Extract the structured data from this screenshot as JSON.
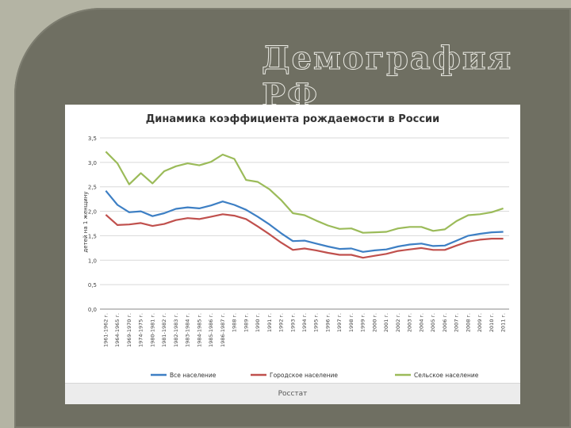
{
  "slide": {
    "title": "Демография РФ",
    "footer_source": "Росстат"
  },
  "colors": {
    "background": "#b4b4a4",
    "panel": "#6f6f62",
    "all_population": "#3d7fc4",
    "urban_population": "#c0504d",
    "rural_population": "#9bbb59"
  },
  "chart_data": {
    "type": "line",
    "title": "Динамика коэффициента рождаемости в России",
    "xlabel": "",
    "ylabel": "детей на 1 женщину",
    "ylim": [
      0,
      3.5
    ],
    "yticks": [
      "0,0",
      "0,5",
      "1,0",
      "1,5",
      "2,0",
      "2,5",
      "3,0",
      "3,5"
    ],
    "grid": true,
    "legend_position": "bottom",
    "categories": [
      "1961-1962 г.",
      "1964-1965 г.",
      "1969-1970 г.",
      "1974-1975 г.",
      "1980-1981 г.",
      "1981-1982 г.",
      "1982-1983 г.",
      "1983-1984 г.",
      "1984-1985 г.",
      "1985-1986 г.",
      "1986-1987 г.",
      "1988 г.",
      "1989 г.",
      "1990 г.",
      "1991 г.",
      "1992 г.",
      "1993 г.",
      "1994 г.",
      "1995 г.",
      "1996 г.",
      "1997 г.",
      "1998 г.",
      "1999 г.",
      "2000 г.",
      "2001 г.",
      "2002 г.",
      "2003 г.",
      "2004 г.",
      "2005 г.",
      "2006 г.",
      "2007 г.",
      "2008 г.",
      "2009 г.",
      "2010 г.",
      "2011 г."
    ],
    "series": [
      {
        "name": "Все население",
        "color": "#3d7fc4",
        "values": [
          2.42,
          2.13,
          1.98,
          2.0,
          1.9,
          1.96,
          2.05,
          2.08,
          2.06,
          2.12,
          2.2,
          2.13,
          2.03,
          1.89,
          1.73,
          1.55,
          1.39,
          1.4,
          1.34,
          1.28,
          1.23,
          1.24,
          1.17,
          1.2,
          1.22,
          1.28,
          1.32,
          1.34,
          1.29,
          1.3,
          1.4,
          1.5,
          1.54,
          1.57,
          1.58
        ]
      },
      {
        "name": "Городское население",
        "color": "#c0504d",
        "values": [
          1.93,
          1.72,
          1.73,
          1.76,
          1.7,
          1.74,
          1.82,
          1.86,
          1.84,
          1.89,
          1.94,
          1.91,
          1.84,
          1.69,
          1.53,
          1.36,
          1.21,
          1.24,
          1.2,
          1.15,
          1.11,
          1.11,
          1.05,
          1.09,
          1.13,
          1.19,
          1.22,
          1.25,
          1.21,
          1.21,
          1.3,
          1.38,
          1.42,
          1.44,
          1.44
        ]
      },
      {
        "name": "Сельское население",
        "color": "#9bbb59",
        "values": [
          3.22,
          2.98,
          2.55,
          2.78,
          2.57,
          2.82,
          2.92,
          2.98,
          2.94,
          3.01,
          3.16,
          3.07,
          2.64,
          2.6,
          2.45,
          2.23,
          1.96,
          1.92,
          1.81,
          1.71,
          1.64,
          1.65,
          1.56,
          1.57,
          1.58,
          1.65,
          1.68,
          1.68,
          1.6,
          1.63,
          1.8,
          1.92,
          1.94,
          1.98,
          2.06
        ]
      }
    ]
  }
}
